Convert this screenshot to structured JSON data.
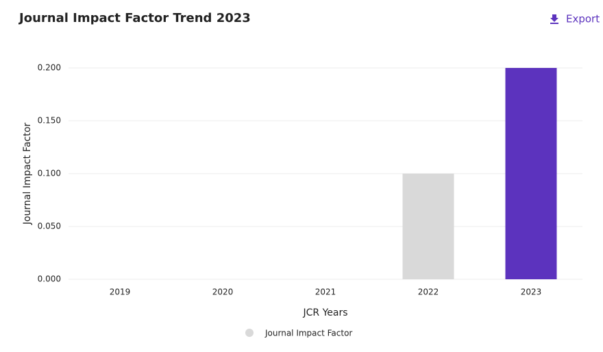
{
  "toolbar": {
    "export": "Export"
  },
  "chart_data": {
    "type": "bar",
    "title": "Journal Impact Factor Trend 2023",
    "x_label": "JCR Years",
    "y_label": "Journal Impact Factor",
    "categories": [
      "2019",
      "2020",
      "2021",
      "2022",
      "2023"
    ],
    "series": [
      {
        "name": "Journal Impact Factor",
        "color": "#d9d9d9",
        "values": [
          0,
          0,
          0,
          0.1,
          0.2
        ]
      }
    ],
    "bar_colors": [
      "#d9d9d9",
      "#d9d9d9",
      "#d9d9d9",
      "#d9d9d9",
      "#5c33be"
    ],
    "ylim": [
      0,
      0.2
    ],
    "yticks": [
      {
        "value": 0,
        "label": "0.000"
      },
      {
        "value": 0.05,
        "label": "0.050"
      },
      {
        "value": 0.1,
        "label": "0.100"
      },
      {
        "value": 0.15,
        "label": "0.150"
      },
      {
        "value": 0.2,
        "label": "0.200"
      }
    ],
    "grid": true
  }
}
